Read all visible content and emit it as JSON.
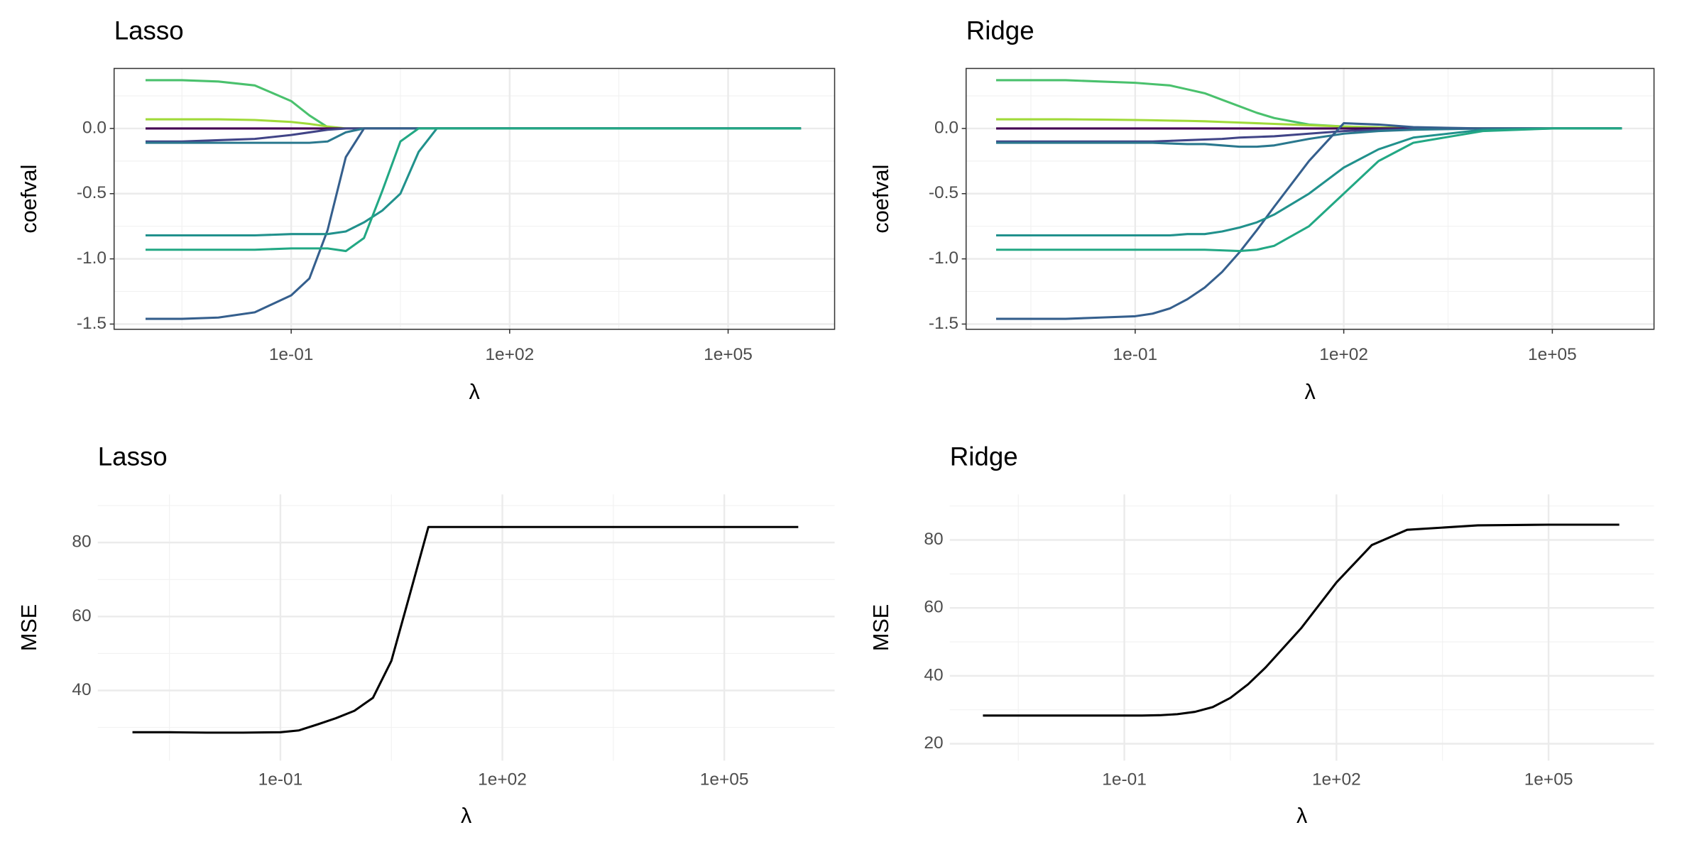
{
  "chart_data": [
    {
      "type": "line",
      "title": "Lasso",
      "x_label": "λ",
      "y_label": "coefval",
      "xscale": "log",
      "grid": true,
      "x": [
        0.001,
        0.00316,
        0.01,
        0.0316,
        0.1,
        0.178,
        0.316,
        0.562,
        1,
        1.78,
        3.16,
        5.62,
        10,
        31.6,
        100,
        316,
        1000,
        10000,
        100000,
        1000000
      ],
      "series": [
        {
          "color": "#4ac16d",
          "values": [
            0.37,
            0.37,
            0.36,
            0.33,
            0.21,
            0.1,
            0.01,
            0,
            0,
            0,
            0,
            0,
            0,
            0,
            0,
            0,
            0,
            0,
            0,
            0
          ]
        },
        {
          "color": "#a0da39",
          "values": [
            0.07,
            0.07,
            0.07,
            0.065,
            0.05,
            0.035,
            0.015,
            0,
            0,
            0,
            0,
            0,
            0,
            0,
            0,
            0,
            0,
            0,
            0,
            0
          ]
        },
        {
          "color": "#440154",
          "values": [
            0,
            0,
            0,
            0,
            0,
            0,
            0,
            0,
            0,
            0,
            0,
            0,
            0,
            0,
            0,
            0,
            0,
            0,
            0,
            0
          ]
        },
        {
          "color": "#414487",
          "values": [
            -0.1,
            -0.1,
            -0.09,
            -0.08,
            -0.05,
            -0.03,
            -0.01,
            0,
            0,
            0,
            0,
            0,
            0,
            0,
            0,
            0,
            0,
            0,
            0,
            0
          ]
        },
        {
          "color": "#2a788e",
          "values": [
            -0.11,
            -0.11,
            -0.11,
            -0.11,
            -0.11,
            -0.11,
            -0.1,
            -0.03,
            0,
            0,
            0,
            0,
            0,
            0,
            0,
            0,
            0,
            0,
            0,
            0
          ]
        },
        {
          "color": "#355f8d",
          "values": [
            -1.46,
            -1.46,
            -1.45,
            -1.41,
            -1.28,
            -1.15,
            -0.78,
            -0.22,
            0,
            0,
            0,
            0,
            0,
            0,
            0,
            0,
            0,
            0,
            0,
            0
          ]
        },
        {
          "color": "#21918c",
          "values": [
            -0.82,
            -0.82,
            -0.82,
            -0.82,
            -0.81,
            -0.81,
            -0.81,
            -0.79,
            -0.72,
            -0.63,
            -0.5,
            -0.18,
            0,
            0,
            0,
            0,
            0,
            0,
            0,
            0
          ]
        },
        {
          "color": "#22a884",
          "values": [
            -0.93,
            -0.93,
            -0.93,
            -0.93,
            -0.92,
            -0.92,
            -0.92,
            -0.94,
            -0.84,
            -0.48,
            -0.1,
            0,
            0,
            0,
            0,
            0,
            0,
            0,
            0,
            0
          ]
        }
      ],
      "xlim": [
        0.00037,
        2900000
      ],
      "xticks": [
        {
          "value": 0.1,
          "label": "1e-01"
        },
        {
          "value": 100,
          "label": "1e+02"
        },
        {
          "value": 100000,
          "label": "1e+05"
        }
      ],
      "ylim": [
        -1.54,
        0.46
      ],
      "yticks": [
        {
          "value": -1.5,
          "label": "-1.5"
        },
        {
          "value": -1,
          "label": "-1.0"
        },
        {
          "value": -0.5,
          "label": "-0.5"
        },
        {
          "value": 0,
          "label": "0.0"
        }
      ]
    },
    {
      "type": "line",
      "title": "Ridge",
      "x_label": "λ",
      "y_label": "coefval",
      "xscale": "log",
      "grid": true,
      "x": [
        0.001,
        0.00316,
        0.01,
        0.0316,
        0.1,
        0.178,
        0.316,
        0.562,
        1,
        1.78,
        3.16,
        5.62,
        10,
        31.6,
        100,
        316,
        1000,
        10000,
        100000,
        1000000
      ],
      "series": [
        {
          "color": "#4ac16d",
          "values": [
            0.37,
            0.37,
            0.37,
            0.36,
            0.35,
            0.34,
            0.33,
            0.3,
            0.27,
            0.22,
            0.17,
            0.12,
            0.08,
            0.03,
            0.015,
            0.008,
            0.003,
            0,
            0,
            0
          ]
        },
        {
          "color": "#a0da39",
          "values": [
            0.07,
            0.07,
            0.07,
            0.068,
            0.065,
            0.063,
            0.06,
            0.058,
            0.055,
            0.05,
            0.045,
            0.04,
            0.035,
            0.025,
            0.015,
            0.008,
            0.004,
            0,
            0,
            0
          ]
        },
        {
          "color": "#440154",
          "values": [
            0,
            0,
            0,
            0,
            0,
            0,
            0,
            0,
            0,
            0,
            0,
            0,
            0,
            0,
            0,
            0,
            0,
            0,
            0,
            0
          ]
        },
        {
          "color": "#414487",
          "values": [
            -0.1,
            -0.1,
            -0.1,
            -0.1,
            -0.1,
            -0.1,
            -0.095,
            -0.09,
            -0.085,
            -0.08,
            -0.07,
            -0.065,
            -0.06,
            -0.04,
            -0.02,
            -0.01,
            -0.005,
            0,
            0,
            0
          ]
        },
        {
          "color": "#2a788e",
          "values": [
            -0.11,
            -0.11,
            -0.11,
            -0.11,
            -0.11,
            -0.11,
            -0.115,
            -0.12,
            -0.12,
            -0.13,
            -0.14,
            -0.14,
            -0.13,
            -0.08,
            -0.04,
            -0.02,
            -0.01,
            0,
            0,
            0
          ]
        },
        {
          "color": "#355f8d",
          "values": [
            -1.46,
            -1.46,
            -1.46,
            -1.45,
            -1.44,
            -1.42,
            -1.38,
            -1.31,
            -1.22,
            -1.1,
            -0.95,
            -0.78,
            -0.6,
            -0.25,
            0.04,
            0.03,
            0.01,
            0,
            0,
            0
          ]
        },
        {
          "color": "#21918c",
          "values": [
            -0.82,
            -0.82,
            -0.82,
            -0.82,
            -0.82,
            -0.82,
            -0.82,
            -0.81,
            -0.81,
            -0.79,
            -0.76,
            -0.72,
            -0.66,
            -0.5,
            -0.3,
            -0.16,
            -0.07,
            -0.01,
            0,
            0
          ]
        },
        {
          "color": "#22a884",
          "values": [
            -0.93,
            -0.93,
            -0.93,
            -0.93,
            -0.93,
            -0.93,
            -0.93,
            -0.93,
            -0.93,
            -0.935,
            -0.94,
            -0.93,
            -0.9,
            -0.75,
            -0.5,
            -0.25,
            -0.11,
            -0.02,
            0,
            0
          ]
        }
      ],
      "xlim": [
        0.00037,
        2900000
      ],
      "xticks": [
        {
          "value": 0.1,
          "label": "1e-01"
        },
        {
          "value": 100,
          "label": "1e+02"
        },
        {
          "value": 100000,
          "label": "1e+05"
        }
      ],
      "ylim": [
        -1.54,
        0.46
      ],
      "yticks": [
        {
          "value": -1.5,
          "label": "-1.5"
        },
        {
          "value": -1,
          "label": "-1.0"
        },
        {
          "value": -0.5,
          "label": "-0.5"
        },
        {
          "value": 0,
          "label": "0.0"
        }
      ]
    },
    {
      "type": "line",
      "title": "Lasso",
      "x_label": "λ",
      "y_label": "MSE",
      "xscale": "log",
      "grid": true,
      "x": [
        0.001,
        0.00316,
        0.01,
        0.0316,
        0.1,
        0.178,
        0.316,
        0.562,
        1,
        1.78,
        3.16,
        5.62,
        10,
        31.6,
        100,
        316,
        1000,
        10000,
        100000,
        1000000
      ],
      "series": [
        {
          "color": "#000000",
          "values": [
            28.7,
            28.7,
            28.6,
            28.6,
            28.7,
            29.2,
            30.8,
            32.5,
            34.5,
            38,
            48,
            66,
            84.2,
            84.2,
            84.2,
            84.2,
            84.2,
            84.2,
            84.2,
            84.2
          ]
        }
      ],
      "xlim": [
        0.00034,
        3100000
      ],
      "xticks": [
        {
          "value": 0.1,
          "label": "1e-01"
        },
        {
          "value": 100,
          "label": "1e+02"
        },
        {
          "value": 100000,
          "label": "1e+05"
        }
      ],
      "ylim": [
        21,
        93
      ],
      "yticks": [
        40,
        60,
        80
      ]
    },
    {
      "type": "line",
      "title": "Ridge",
      "x_label": "λ",
      "y_label": "MSE",
      "xscale": "log",
      "grid": true,
      "x": [
        0.001,
        0.00316,
        0.01,
        0.0316,
        0.1,
        0.178,
        0.316,
        0.562,
        1,
        1.78,
        3.16,
        5.62,
        10,
        31.6,
        100,
        316,
        1000,
        10000,
        100000,
        1000000
      ],
      "series": [
        {
          "color": "#000000",
          "values": [
            28.3,
            28.3,
            28.3,
            28.3,
            28.3,
            28.3,
            28.4,
            28.7,
            29.4,
            30.8,
            33.5,
            37.5,
            42.5,
            54,
            67.5,
            78.5,
            83,
            84.3,
            84.5,
            84.5
          ]
        }
      ],
      "xlim": [
        0.00034,
        3100000
      ],
      "xticks": [
        {
          "value": 0.1,
          "label": "1e-01"
        },
        {
          "value": 100,
          "label": "1e+02"
        },
        {
          "value": 100000,
          "label": "1e+05"
        }
      ],
      "ylim": [
        15,
        93.4
      ],
      "yticks": [
        20,
        40,
        60,
        80
      ]
    }
  ]
}
